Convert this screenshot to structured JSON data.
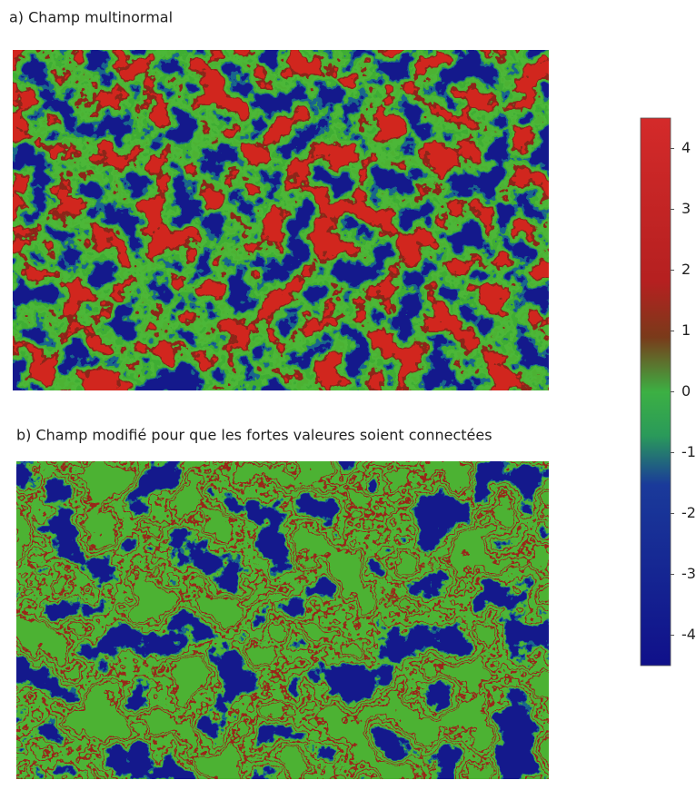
{
  "panels": [
    {
      "title": "a) Champ multinormal"
    },
    {
      "title": "b) Champ modifié pour que les fortes valeures soient connectées"
    }
  ],
  "colorbar": {
    "lim": [
      -4.5,
      4.5
    ],
    "ticks": [
      4,
      3,
      2,
      1,
      0,
      -1,
      -2,
      -3,
      -4
    ]
  }
}
